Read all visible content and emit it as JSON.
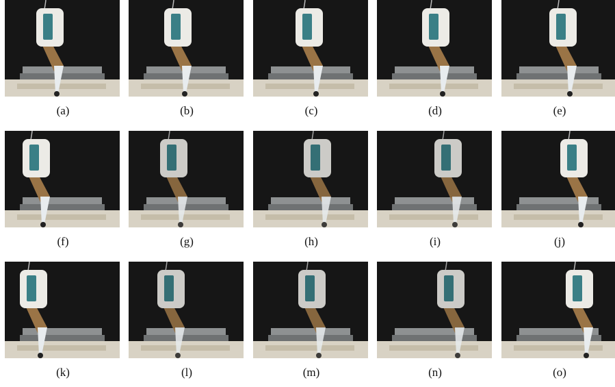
{
  "panels": [
    {
      "caption": "(a)"
    },
    {
      "caption": "(b)"
    },
    {
      "caption": "(c)"
    },
    {
      "caption": "(d)"
    },
    {
      "caption": "(e)"
    },
    {
      "caption": "(f)"
    },
    {
      "caption": "(g)"
    },
    {
      "caption": "(h)"
    },
    {
      "caption": "(i)"
    },
    {
      "caption": "(j)"
    },
    {
      "caption": "(k)"
    },
    {
      "caption": "(l)"
    },
    {
      "caption": "(m)"
    },
    {
      "caption": "(n)"
    },
    {
      "caption": "(o)"
    }
  ]
}
